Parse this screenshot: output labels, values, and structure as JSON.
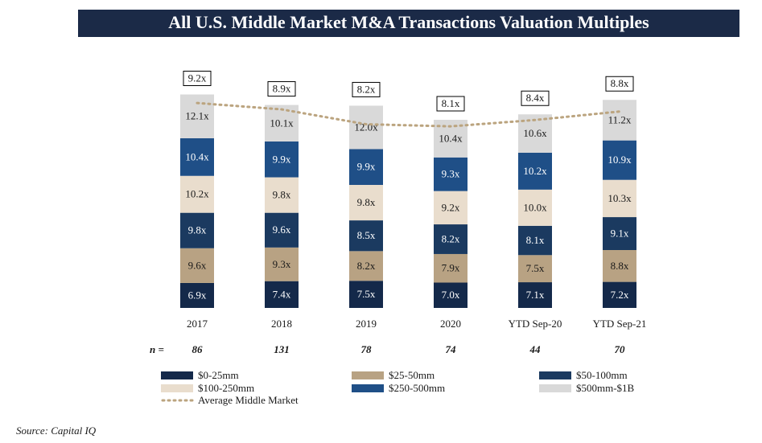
{
  "chart_data": {
    "type": "bar",
    "stacked": true,
    "title": "All U.S. Middle Market M&A Transactions Valuation Multiples",
    "categories": [
      "2017",
      "2018",
      "2019",
      "2020",
      "YTD Sep-20",
      "YTD Sep-21"
    ],
    "n_label": "n =",
    "n_values": [
      86,
      131,
      78,
      74,
      44,
      70
    ],
    "series": [
      {
        "name": "$0-25mm",
        "color": "#14294a",
        "label_color": "#ffffff",
        "values": [
          6.9,
          7.4,
          7.5,
          7.0,
          7.1,
          7.2
        ],
        "value_labels": [
          "6.9x",
          "7.4x",
          "7.5x",
          "7.0x",
          "7.1x",
          "7.2x"
        ]
      },
      {
        "name": "$25-50mm",
        "color": "#b8a283",
        "label_color": "#1a1a1a",
        "values": [
          9.6,
          9.3,
          8.2,
          7.9,
          7.5,
          8.8
        ],
        "value_labels": [
          "9.6x",
          "9.3x",
          "8.2x",
          "7.9x",
          "7.5x",
          "8.8x"
        ]
      },
      {
        "name": "$50-100mm",
        "color": "#1b3a60",
        "label_color": "#ffffff",
        "values": [
          9.8,
          9.6,
          8.5,
          8.2,
          8.1,
          9.1
        ],
        "value_labels": [
          "9.8x",
          "9.6x",
          "8.5x",
          "8.2x",
          "8.1x",
          "9.1x"
        ]
      },
      {
        "name": "$100-250mm",
        "color": "#e9ddcd",
        "label_color": "#1a1a1a",
        "values": [
          10.2,
          9.8,
          9.8,
          9.2,
          10.0,
          10.3
        ],
        "value_labels": [
          "10.2x",
          "9.8x",
          "9.8x",
          "9.2x",
          "10.0x",
          "10.3x"
        ]
      },
      {
        "name": "$250-500mm",
        "color": "#1f4f87",
        "label_color": "#ffffff",
        "values": [
          10.4,
          9.9,
          9.9,
          9.3,
          10.2,
          10.9
        ],
        "value_labels": [
          "10.4x",
          "9.9x",
          "9.9x",
          "9.3x",
          "10.2x",
          "10.9x"
        ]
      },
      {
        "name": "$500mm-$1B",
        "color": "#d9d9d9",
        "label_color": "#1a1a1a",
        "values": [
          12.1,
          10.1,
          12.0,
          10.4,
          10.6,
          11.2
        ],
        "value_labels": [
          "12.1x",
          "10.1x",
          "12.0x",
          "10.4x",
          "10.6x",
          "11.2x"
        ]
      },
      {
        "name": "Average Middle Market",
        "type": "line",
        "color": "#bba47f",
        "values": [
          9.2,
          8.9,
          8.2,
          8.1,
          8.4,
          8.8
        ],
        "value_labels": [
          "9.2x",
          "8.9x",
          "8.2x",
          "8.1x",
          "8.4x",
          "8.8x"
        ]
      }
    ],
    "source": "Source: Capital IQ"
  }
}
